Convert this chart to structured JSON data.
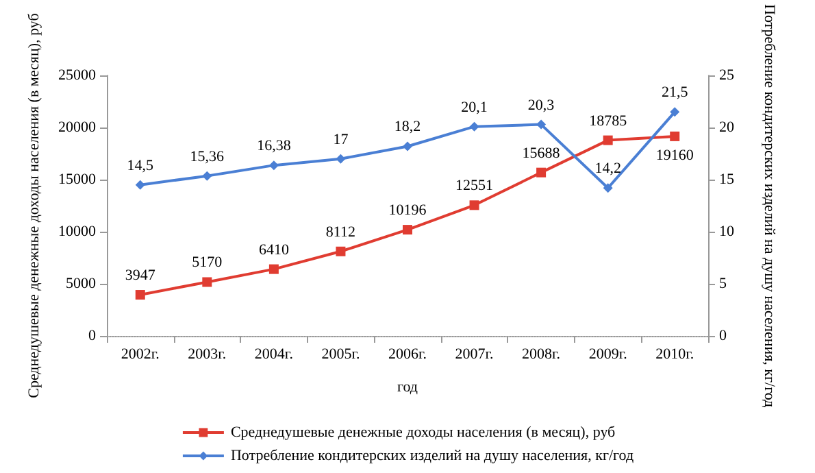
{
  "chart_data": {
    "type": "line",
    "xlabel": "год",
    "ylabel": "Среднедушевые денежные доходы населения (в месяц), руб",
    "y2label": "Потребление кондитерских изделий на душу населения, кг/год",
    "categories": [
      "2002г.",
      "2003г.",
      "2004г.",
      "2005г.",
      "2006г.",
      "2007г.",
      "2008г.",
      "2009г.",
      "2010г."
    ],
    "series": [
      {
        "name": "Среднедушевые денежные доходы населения (в месяц), руб",
        "color": "#e03c31",
        "marker": "square",
        "values": [
          3947,
          5170,
          6410,
          8112,
          10196,
          12551,
          15688,
          18785,
          19160
        ],
        "value_labels": [
          "3947",
          "5170",
          "6410",
          "8112",
          "10196",
          "12551",
          "15688",
          "18785",
          "19160"
        ]
      },
      {
        "name": "Потребление кондитерских изделий на душу населения, кг/год",
        "color": "#4a7fd4",
        "marker": "diamond",
        "axis": "y2",
        "values": [
          14.5,
          15.36,
          16.38,
          17,
          18.2,
          20.1,
          20.3,
          14.2,
          21.5
        ],
        "value_labels": [
          "14,5",
          "15,36",
          "16,38",
          "17",
          "18,2",
          "20,1",
          "20,3",
          "14,2",
          "21,5"
        ]
      }
    ],
    "ylim": [
      0,
      25000
    ],
    "yticks": [
      0,
      5000,
      10000,
      15000,
      20000,
      25000
    ],
    "y2lim": [
      0,
      25
    ],
    "y2ticks": [
      0,
      5,
      10,
      15,
      20,
      25
    ],
    "legend": "bottom",
    "grid": false
  }
}
